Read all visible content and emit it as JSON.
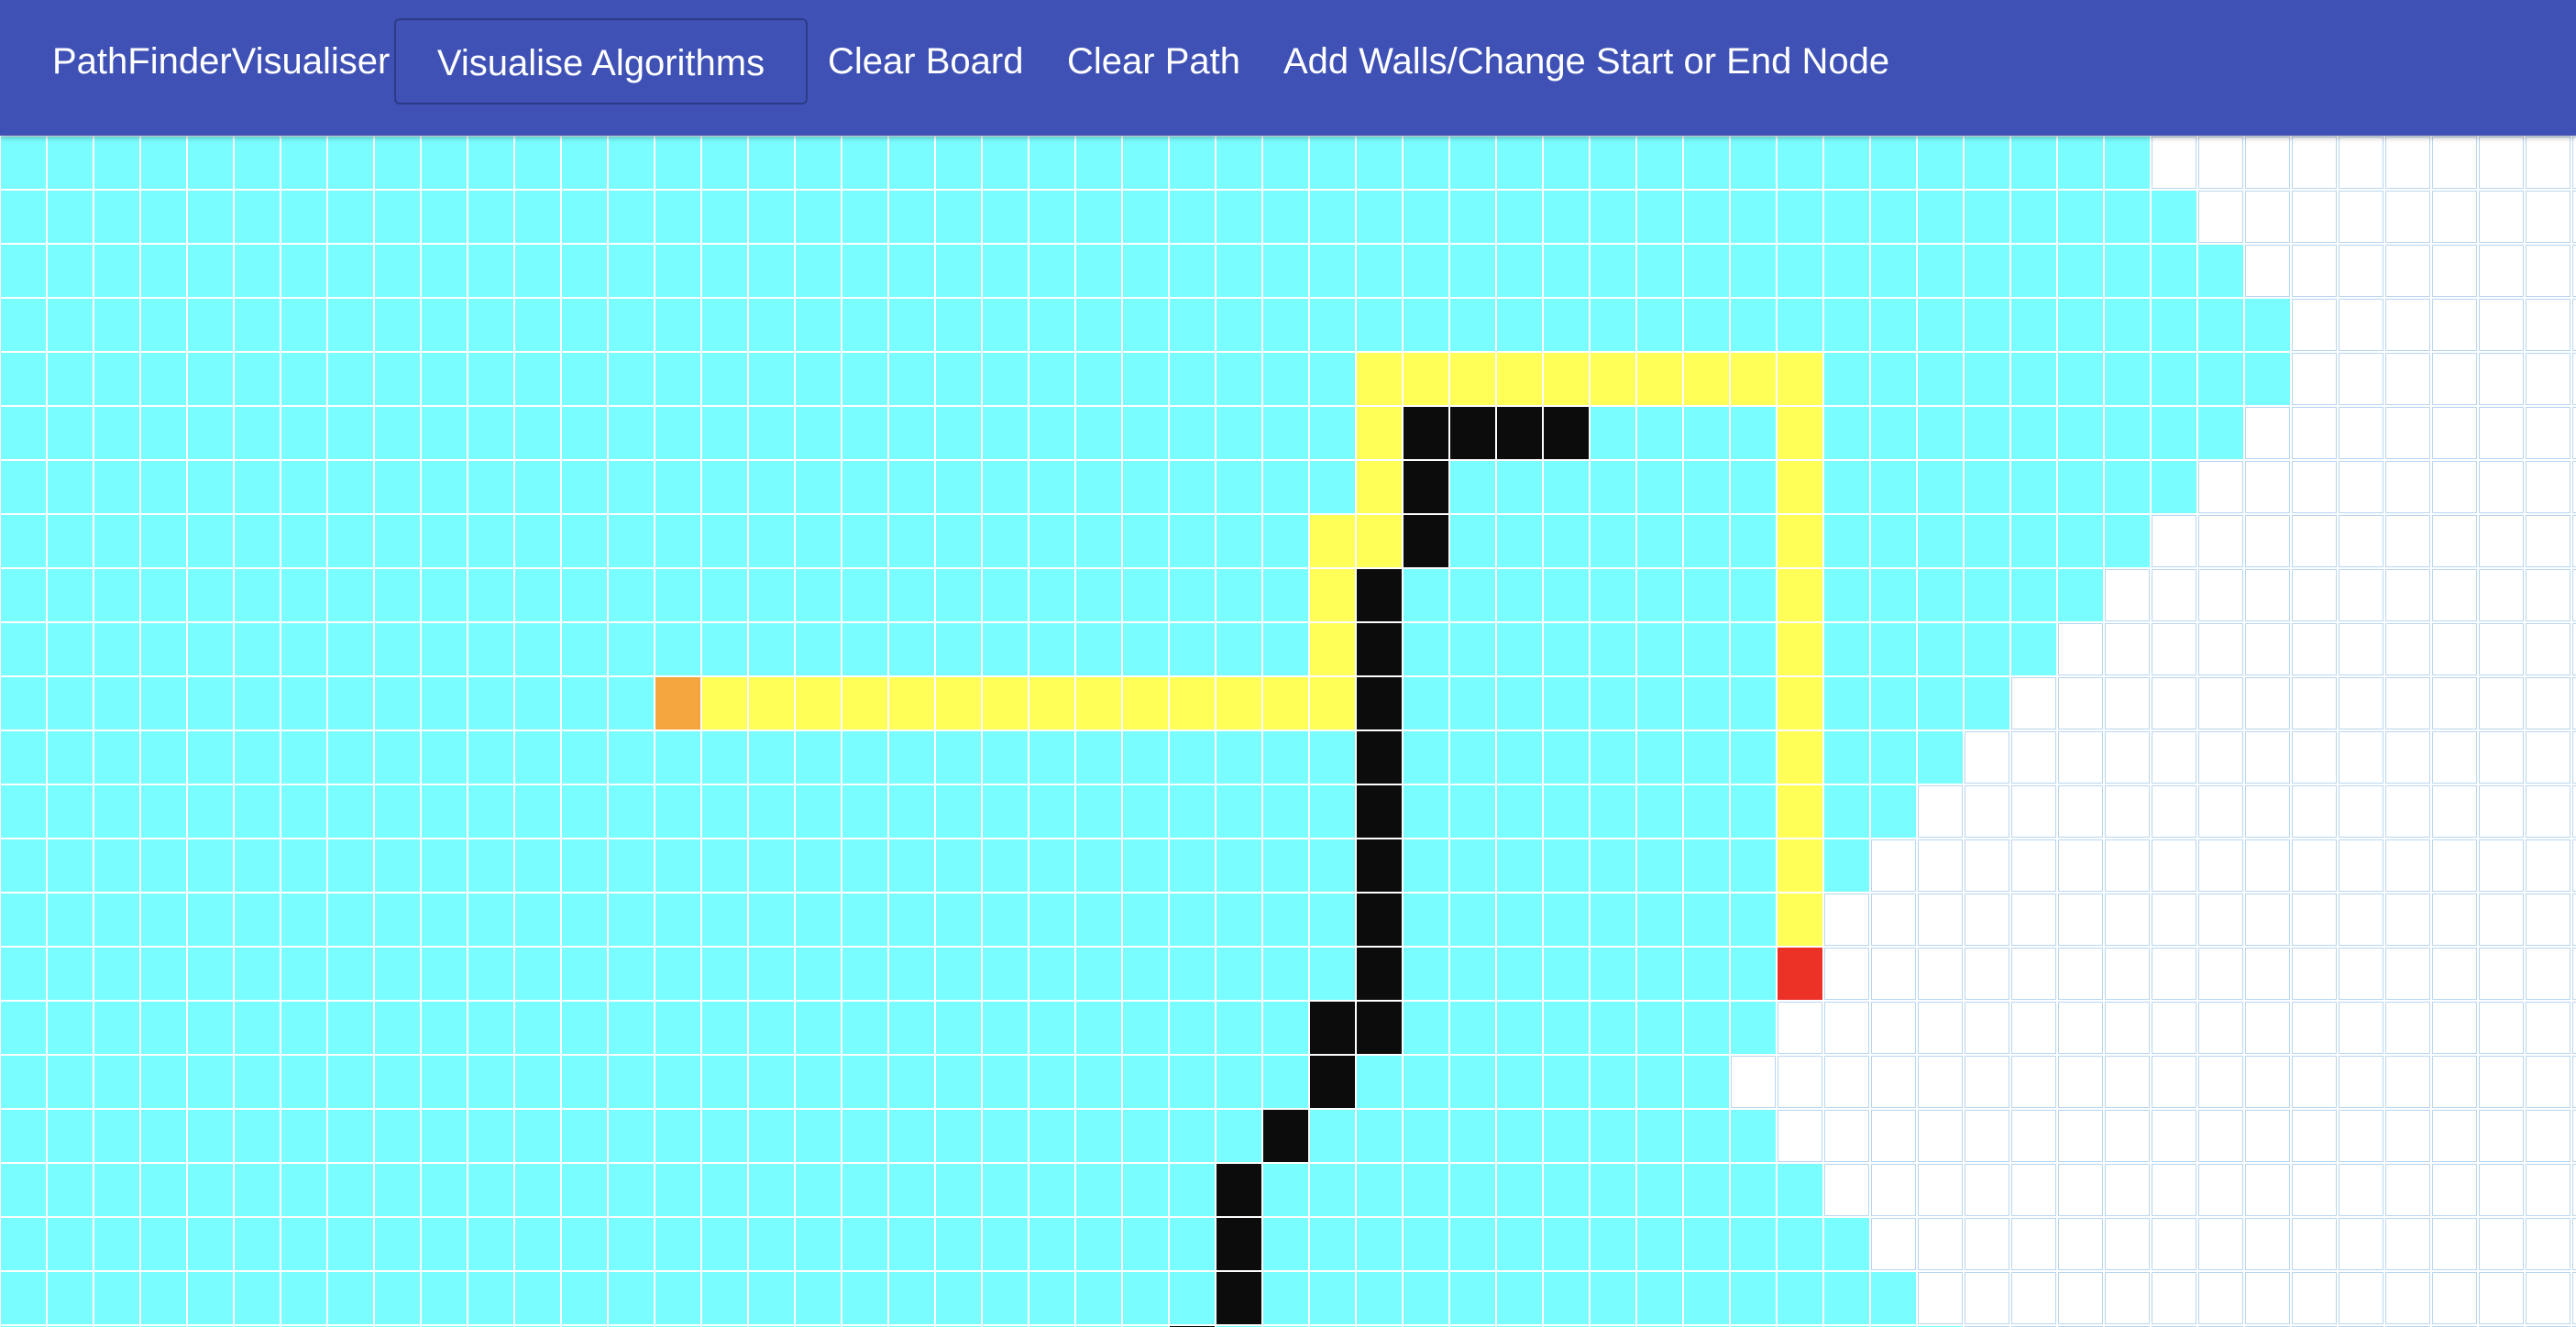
{
  "navbar": {
    "brand": "PathFinderVisualiser",
    "visualise_label": "Visualise Algorithms",
    "clear_board_label": "Clear Board",
    "clear_path_label": "Clear Path",
    "edit_label": "Add Walls/Change Start or End Node",
    "background_color": "#3f51b5"
  },
  "grid": {
    "columns": 56,
    "rows": 23,
    "colors": {
      "visited": "#79fdff",
      "unvisited": "#ffffff",
      "path": "#ffff57",
      "wall": "#0c0c0c",
      "start": "#f4a53e",
      "end": "#ec3127"
    },
    "visited_extent": [
      46,
      47,
      48,
      49,
      49,
      48,
      47,
      46,
      45,
      44,
      43,
      42,
      41,
      40,
      39,
      38,
      38,
      37,
      38,
      39,
      40,
      41,
      42
    ],
    "start_node": [
      10,
      14
    ],
    "end_node": [
      15,
      38
    ],
    "walls": [
      [
        5,
        30
      ],
      [
        5,
        31
      ],
      [
        5,
        32
      ],
      [
        5,
        33
      ],
      [
        6,
        30
      ],
      [
        7,
        30
      ],
      [
        8,
        29
      ],
      [
        9,
        29
      ],
      [
        10,
        29
      ],
      [
        11,
        29
      ],
      [
        12,
        29
      ],
      [
        13,
        29
      ],
      [
        14,
        29
      ],
      [
        15,
        29
      ],
      [
        16,
        28
      ],
      [
        16,
        29
      ],
      [
        17,
        28
      ],
      [
        18,
        27
      ],
      [
        19,
        26
      ],
      [
        20,
        26
      ],
      [
        21,
        26
      ],
      [
        22,
        25
      ]
    ],
    "path": [
      [
        4,
        29
      ],
      [
        4,
        30
      ],
      [
        4,
        31
      ],
      [
        4,
        32
      ],
      [
        4,
        33
      ],
      [
        4,
        34
      ],
      [
        4,
        35
      ],
      [
        4,
        36
      ],
      [
        4,
        37
      ],
      [
        4,
        38
      ],
      [
        5,
        29
      ],
      [
        5,
        38
      ],
      [
        6,
        29
      ],
      [
        6,
        38
      ],
      [
        7,
        28
      ],
      [
        7,
        29
      ],
      [
        7,
        38
      ],
      [
        8,
        28
      ],
      [
        8,
        38
      ],
      [
        9,
        28
      ],
      [
        9,
        38
      ],
      [
        10,
        15
      ],
      [
        10,
        16
      ],
      [
        10,
        17
      ],
      [
        10,
        18
      ],
      [
        10,
        19
      ],
      [
        10,
        20
      ],
      [
        10,
        21
      ],
      [
        10,
        22
      ],
      [
        10,
        23
      ],
      [
        10,
        24
      ],
      [
        10,
        25
      ],
      [
        10,
        26
      ],
      [
        10,
        27
      ],
      [
        10,
        28
      ],
      [
        10,
        38
      ],
      [
        11,
        38
      ],
      [
        12,
        38
      ],
      [
        13,
        38
      ],
      [
        14,
        38
      ]
    ]
  }
}
